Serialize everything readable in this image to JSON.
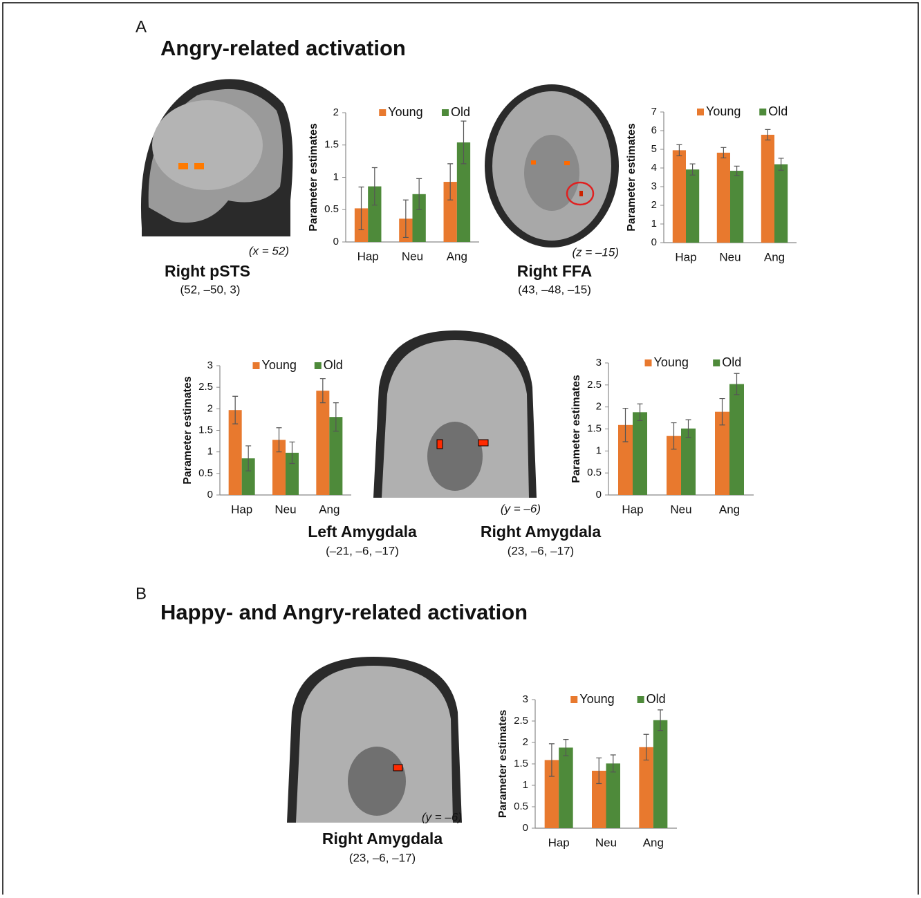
{
  "chart_data": [
    {
      "type": "bar",
      "ylabel": "Parameter estimates",
      "categories": [
        "Hap",
        "Neu",
        "Ang"
      ],
      "series": [
        {
          "name": "Young",
          "color": "#e8792e",
          "values": [
            0.52,
            0.36,
            0.93
          ],
          "errors": [
            0.33,
            0.29,
            0.28
          ]
        },
        {
          "name": "Old",
          "color": "#4e8a3a",
          "values": [
            0.86,
            0.74,
            1.54
          ],
          "errors": [
            0.29,
            0.24,
            0.33
          ]
        }
      ],
      "ylim": [
        0,
        2
      ],
      "yticks": [
        0,
        0.5,
        1,
        1.5,
        2
      ]
    },
    {
      "type": "bar",
      "ylabel": "Parameter estimates",
      "categories": [
        "Hap",
        "Neu",
        "Ang"
      ],
      "series": [
        {
          "name": "Young",
          "color": "#e8792e",
          "values": [
            4.95,
            4.82,
            5.78
          ],
          "errors": [
            0.3,
            0.28,
            0.28
          ]
        },
        {
          "name": "Old",
          "color": "#4e8a3a",
          "values": [
            3.92,
            3.85,
            4.2
          ],
          "errors": [
            0.3,
            0.25,
            0.32
          ]
        }
      ],
      "ylim": [
        0,
        7
      ],
      "yticks": [
        0,
        1,
        2,
        3,
        4,
        5,
        6,
        7
      ]
    },
    {
      "type": "bar",
      "ylabel": "Parameter estimates",
      "categories": [
        "Hap",
        "Neu",
        "Ang"
      ],
      "series": [
        {
          "name": "Young",
          "color": "#e8792e",
          "values": [
            1.97,
            1.28,
            2.42
          ],
          "errors": [
            0.32,
            0.28,
            0.28
          ]
        },
        {
          "name": "Old",
          "color": "#4e8a3a",
          "values": [
            0.85,
            0.98,
            1.81
          ],
          "errors": [
            0.29,
            0.25,
            0.33
          ]
        }
      ],
      "ylim": [
        0,
        3
      ],
      "yticks": [
        0,
        0.5,
        1,
        1.5,
        2,
        2.5,
        3
      ]
    },
    {
      "type": "bar",
      "ylabel": "Parameter estimates",
      "categories": [
        "Hap",
        "Neu",
        "Ang"
      ],
      "series": [
        {
          "name": "Young",
          "color": "#e8792e",
          "values": [
            1.59,
            1.34,
            1.89
          ],
          "errors": [
            0.38,
            0.3,
            0.3
          ]
        },
        {
          "name": "Old",
          "color": "#4e8a3a",
          "values": [
            1.88,
            1.51,
            2.52
          ],
          "errors": [
            0.19,
            0.2,
            0.24
          ]
        }
      ],
      "ylim": [
        0,
        3
      ],
      "yticks": [
        0,
        0.5,
        1,
        1.5,
        2,
        2.5,
        3
      ]
    },
    {
      "type": "bar",
      "ylabel": "Parameter estimates",
      "categories": [
        "Hap",
        "Neu",
        "Ang"
      ],
      "series": [
        {
          "name": "Young",
          "color": "#e8792e",
          "values": [
            1.59,
            1.34,
            1.89
          ],
          "errors": [
            0.38,
            0.3,
            0.3
          ]
        },
        {
          "name": "Old",
          "color": "#4e8a3a",
          "values": [
            1.88,
            1.51,
            2.52
          ],
          "errors": [
            0.19,
            0.2,
            0.24
          ]
        }
      ],
      "ylim": [
        0,
        3
      ],
      "yticks": [
        0,
        0.5,
        1,
        1.5,
        2,
        2.5,
        3
      ]
    }
  ],
  "figure": {
    "panels": [
      {
        "label": "A",
        "title": "Angry-related activation"
      },
      {
        "label": "B",
        "title": "Happy- and Angry-related activation"
      }
    ],
    "regions": [
      {
        "name": "Right pSTS",
        "coords": "(52,  –50,  3)",
        "slice": "(x = 52)"
      },
      {
        "name": "Right FFA",
        "coords": "(43,  –48,  –15)",
        "slice": "(z = –15)"
      },
      {
        "name": "Left Amygdala",
        "coords": "(–21, –6,  –17)"
      },
      {
        "name": "Right Amygdala",
        "coords": "(23,  –6,  –17)",
        "slice": "(y = –6)"
      },
      {
        "name": "Right Amygdala",
        "coords": "(23,  –6,  –17)",
        "slice": "(y = –6)"
      }
    ]
  }
}
